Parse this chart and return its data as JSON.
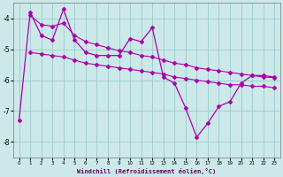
{
  "xlabel": "Windchill (Refroidissement éolien,°C)",
  "background_color": "#cce8e8",
  "grid_color": "#99cccc",
  "line_color": "#aa00aa",
  "x_hours": [
    0,
    1,
    2,
    3,
    4,
    5,
    6,
    7,
    8,
    9,
    10,
    11,
    12,
    13,
    14,
    15,
    16,
    17,
    18,
    19,
    20,
    21,
    22,
    23
  ],
  "main_line": [
    -7.3,
    -3.8,
    -4.55,
    -4.7,
    -3.7,
    -4.7,
    -5.1,
    -5.2,
    -5.2,
    -5.2,
    -4.65,
    -4.75,
    -4.3,
    -5.9,
    -6.1,
    -6.9,
    -7.85,
    -7.4,
    -6.85,
    -6.7,
    -6.1,
    -5.85,
    -5.85,
    -5.9
  ],
  "upper_line": [
    null,
    -3.9,
    -4.2,
    -4.25,
    -4.15,
    -4.55,
    -4.75,
    -4.85,
    -4.95,
    -5.05,
    -5.1,
    -5.2,
    -5.25,
    -5.35,
    -5.45,
    -5.5,
    -5.6,
    -5.65,
    -5.7,
    -5.75,
    -5.8,
    -5.85,
    -5.9,
    -5.92
  ],
  "lower_line": [
    null,
    -5.1,
    -5.15,
    -5.2,
    -5.25,
    -5.35,
    -5.45,
    -5.5,
    -5.55,
    -5.6,
    -5.65,
    -5.7,
    -5.75,
    -5.8,
    -5.9,
    -5.95,
    -6.0,
    -6.05,
    -6.1,
    -6.15,
    -6.15,
    -6.2,
    -6.2,
    -6.25
  ],
  "ylim": [
    -8.5,
    -3.5
  ],
  "yticks": [
    -8,
    -7,
    -6,
    -5,
    -4
  ],
  "xticks": [
    0,
    1,
    2,
    3,
    4,
    5,
    6,
    7,
    8,
    9,
    10,
    11,
    12,
    13,
    14,
    15,
    16,
    17,
    18,
    19,
    20,
    21,
    22,
    23
  ]
}
